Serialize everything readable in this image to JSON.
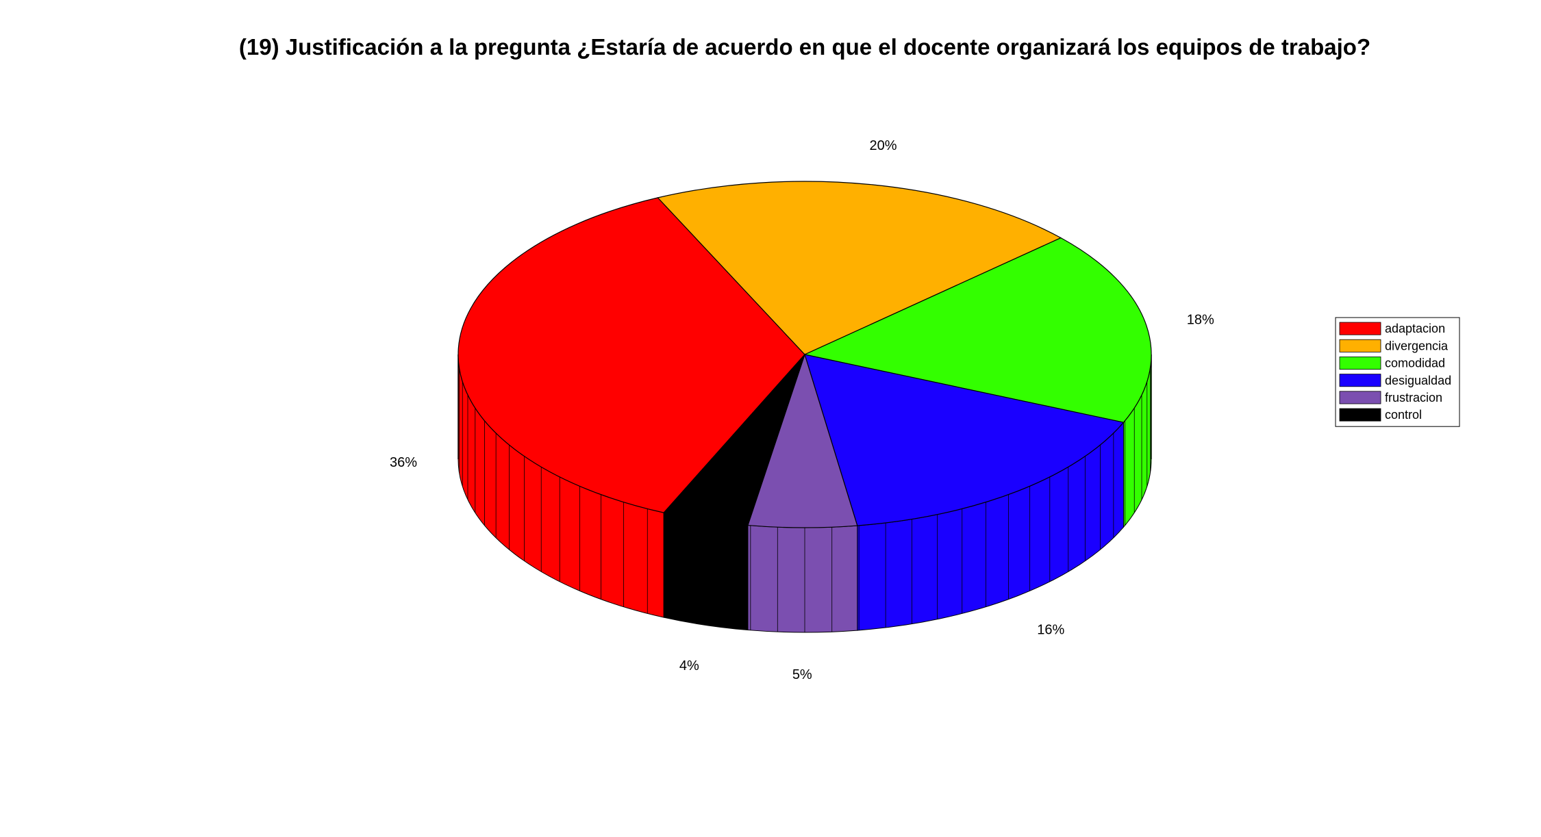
{
  "chart_data": {
    "type": "pie",
    "style": "3d-exploded-cylinder",
    "title": "(19) Justificación a la pregunta ¿Estaría de acuerdo en que el docente organizará los equipos de trabajo?",
    "legend_position": "right",
    "slices": [
      {
        "name": "adaptacion",
        "value": 36,
        "label": "36%",
        "color": "#ff0000"
      },
      {
        "name": "divergencia",
        "value": 20,
        "label": "20%",
        "color": "#ffb000"
      },
      {
        "name": "comodidad",
        "value": 18,
        "label": "18%",
        "color": "#33ff00"
      },
      {
        "name": "desigualdad",
        "value": 16,
        "label": "16%",
        "color": "#1a00ff"
      },
      {
        "name": "frustracion",
        "value": 5,
        "label": "5%",
        "color": "#7b4fb0"
      },
      {
        "name": "control",
        "value": 4,
        "label": "4%",
        "color": "#000000"
      }
    ]
  }
}
